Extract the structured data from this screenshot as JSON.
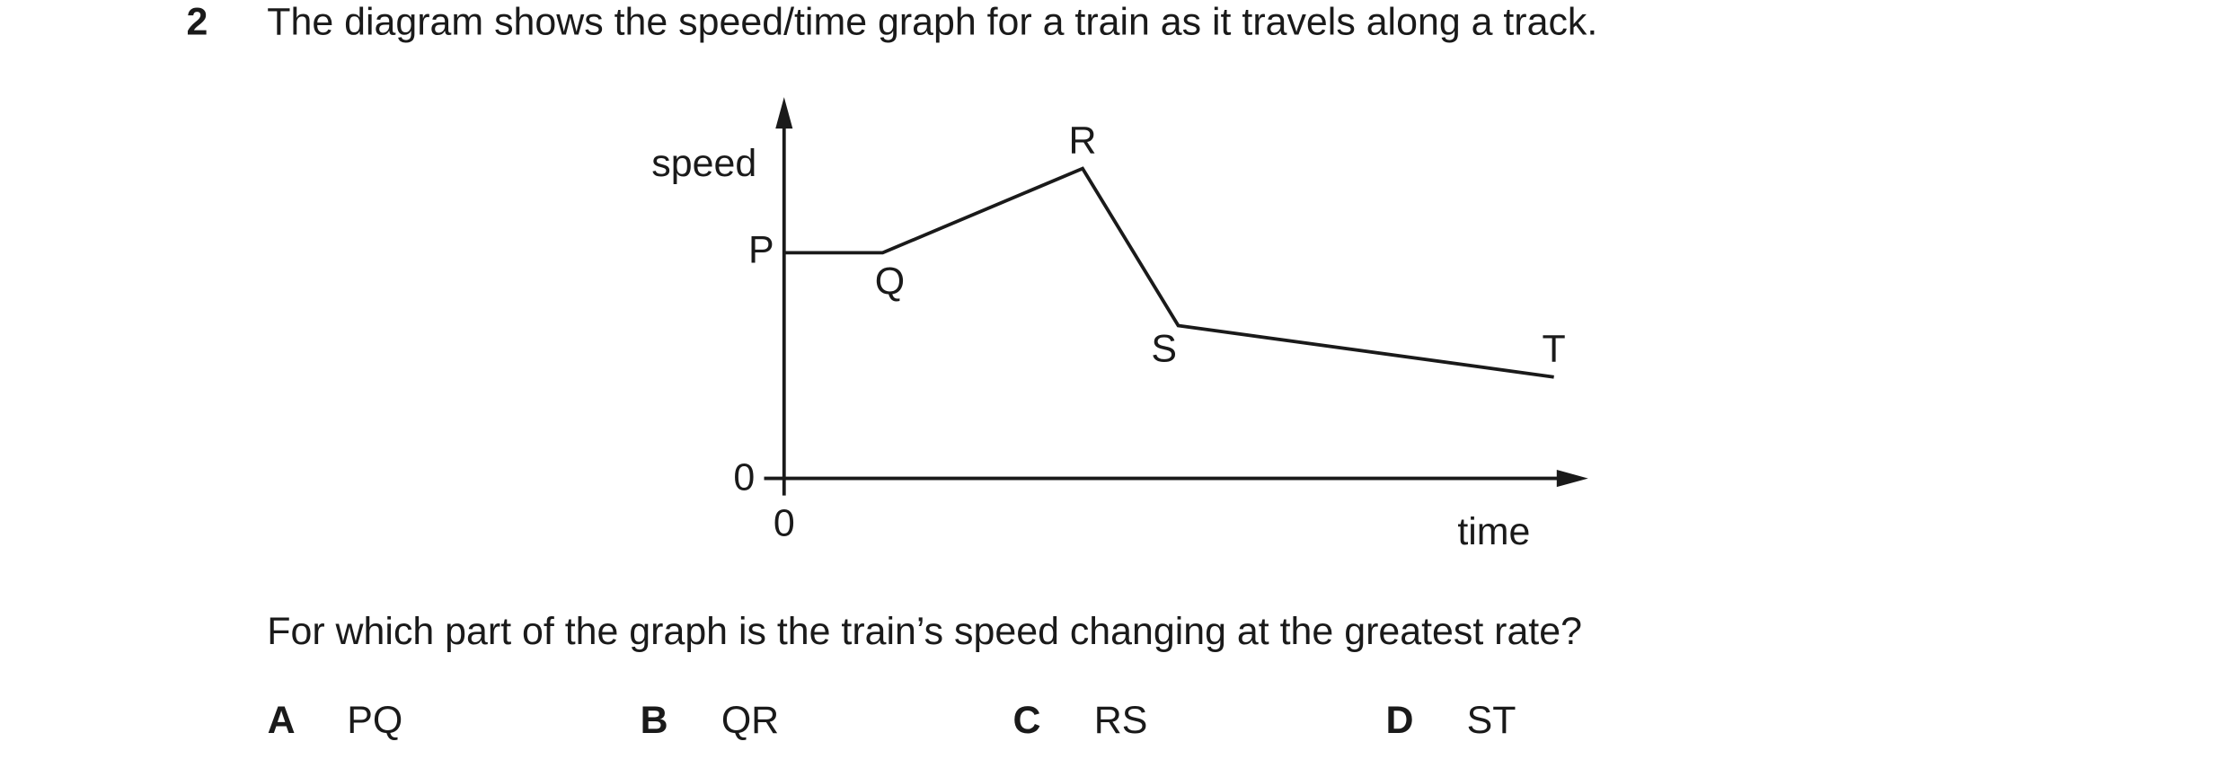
{
  "question": {
    "number": "2",
    "stem": "The diagram shows the speed/time graph for a train as it travels along a track.",
    "prompt": "For which part of the graph is the train’s speed changing at the greatest rate?",
    "options": [
      {
        "letter": "A",
        "text": "PQ"
      },
      {
        "letter": "B",
        "text": "QR"
      },
      {
        "letter": "C",
        "text": "RS"
      },
      {
        "letter": "D",
        "text": "ST"
      }
    ]
  },
  "diagram": {
    "y_axis_label": "speed",
    "x_axis_label": "time",
    "y_origin_label": "0",
    "x_origin_label": "0",
    "points": [
      "P",
      "Q",
      "R",
      "S",
      "T"
    ]
  }
}
